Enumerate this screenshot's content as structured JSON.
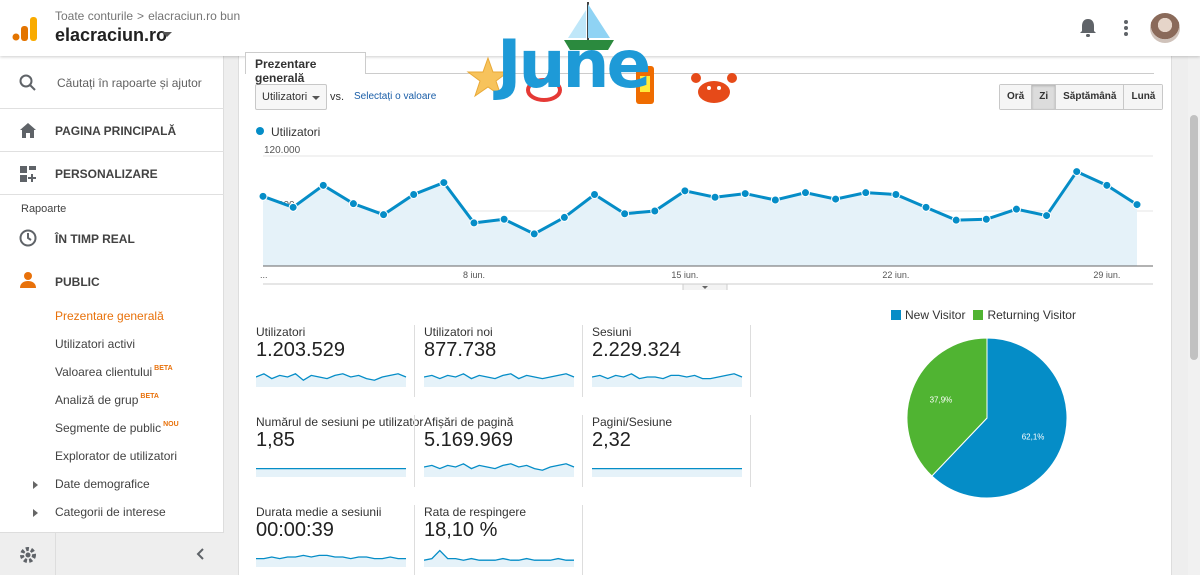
{
  "header": {
    "breadcrumb_root": "Toate conturile",
    "breadcrumb_sep": ">",
    "breadcrumb_view": "elacraciun.ro bun",
    "account_name": "elacraciun.ro"
  },
  "sidebar": {
    "search_placeholder": "Căutați în rapoarte și ajutor",
    "home": "PAGINA PRINCIPALĂ",
    "customize": "PERSONALIZARE",
    "reports_heading": "Rapoarte",
    "realtime": "ÎN TIMP REAL",
    "audience": "PUBLIC",
    "sub_items": [
      {
        "label": "Prezentare generală",
        "badge": ""
      },
      {
        "label": "Utilizatori activi",
        "badge": ""
      },
      {
        "label": "Valoarea clientului",
        "badge": "BETA"
      },
      {
        "label": "Analiză de grup",
        "badge": "BETA"
      },
      {
        "label": "Segmente de public",
        "badge": "NOU"
      },
      {
        "label": "Explorator de utilizatori",
        "badge": ""
      },
      {
        "label": "Date demografice",
        "badge": ""
      },
      {
        "label": "Categorii de interese",
        "badge": ""
      }
    ]
  },
  "main": {
    "tab_label": "Prezentare generală",
    "metric_select": "Utilizatori",
    "vs_label": "vs.",
    "select_value_link": "Selectați o valoare",
    "range_buttons": [
      "Oră",
      "Zi",
      "Săptămână",
      "Lună"
    ],
    "active_range": "Zi"
  },
  "chart_data": {
    "type": "area",
    "series": [
      {
        "name": "Utilizatori",
        "color": "#058dc7",
        "values": [
          76000,
          64000,
          88000,
          68000,
          56000,
          78000,
          91000,
          47000,
          51000,
          35000,
          53000,
          78000,
          57000,
          60000,
          82000,
          75000,
          79000,
          72000,
          80000,
          73000,
          80000,
          78000,
          64000,
          50000,
          51000,
          62000,
          55000,
          103000,
          88000,
          67000
        ]
      }
    ],
    "y_ticks": [
      "120.000",
      "60.000"
    ],
    "y_tick_values": [
      120000,
      60000
    ],
    "x_ticks": [
      "...",
      "8 iun.",
      "15 iun.",
      "22 iun.",
      "29 iun."
    ],
    "x_tick_indices": [
      0,
      7,
      14,
      21,
      28
    ],
    "ylim": [
      0,
      120000
    ]
  },
  "scorecards": [
    {
      "label": "Utilizatori",
      "value": "1.203.529",
      "spark": [
        5,
        7,
        4,
        6,
        5,
        7,
        3,
        6,
        5,
        4,
        6,
        7,
        5,
        6,
        4,
        3,
        5,
        6,
        7,
        5
      ]
    },
    {
      "label": "Utilizatori noi",
      "value": "877.738",
      "spark": [
        5,
        6,
        4,
        6,
        5,
        7,
        4,
        6,
        5,
        4,
        6,
        7,
        4,
        6,
        5,
        4,
        5,
        6,
        7,
        5
      ]
    },
    {
      "label": "Sesiuni",
      "value": "2.229.324",
      "spark": [
        5,
        6,
        4,
        6,
        5,
        7,
        4,
        5,
        5,
        4,
        6,
        6,
        5,
        6,
        4,
        4,
        5,
        6,
        7,
        5
      ]
    },
    {
      "label": "Numărul de sesiuni pe utilizator",
      "value": "1,85",
      "spark": [
        4,
        4,
        4,
        4,
        4,
        4,
        4,
        4,
        4,
        4,
        4,
        4,
        4,
        4,
        4,
        4,
        4,
        4,
        4,
        4
      ]
    },
    {
      "label": "Afișări de pagină",
      "value": "5.169.969",
      "spark": [
        5,
        6,
        4,
        6,
        5,
        7,
        4,
        6,
        5,
        4,
        6,
        7,
        5,
        6,
        4,
        3,
        5,
        6,
        7,
        5
      ]
    },
    {
      "label": "Pagini/Sesiune",
      "value": "2,32",
      "spark": [
        4,
        4,
        4,
        4,
        4,
        4,
        4,
        4,
        4,
        4,
        4,
        4,
        4,
        4,
        4,
        4,
        4,
        4,
        4,
        4
      ]
    },
    {
      "label": "Durata medie a sesiunii",
      "value": "00:00:39",
      "spark": [
        4,
        4,
        5,
        4,
        5,
        5,
        6,
        5,
        6,
        6,
        5,
        5,
        4,
        5,
        5,
        4,
        4,
        5,
        4,
        4
      ]
    },
    {
      "label": "Rata de respingere",
      "value": "18,10 %",
      "spark": [
        3,
        4,
        9,
        4,
        4,
        3,
        4,
        3,
        3,
        3,
        4,
        3,
        3,
        4,
        3,
        3,
        3,
        4,
        3,
        3
      ]
    }
  ],
  "pie": {
    "legend": [
      {
        "label": "New Visitor",
        "color": "#058dc7",
        "pct": 62.1,
        "text": "62,1%"
      },
      {
        "label": "Returning Visitor",
        "color": "#50b432",
        "pct": 37.9,
        "text": "37,9%"
      }
    ]
  },
  "overlay": {
    "june_text": "June"
  }
}
